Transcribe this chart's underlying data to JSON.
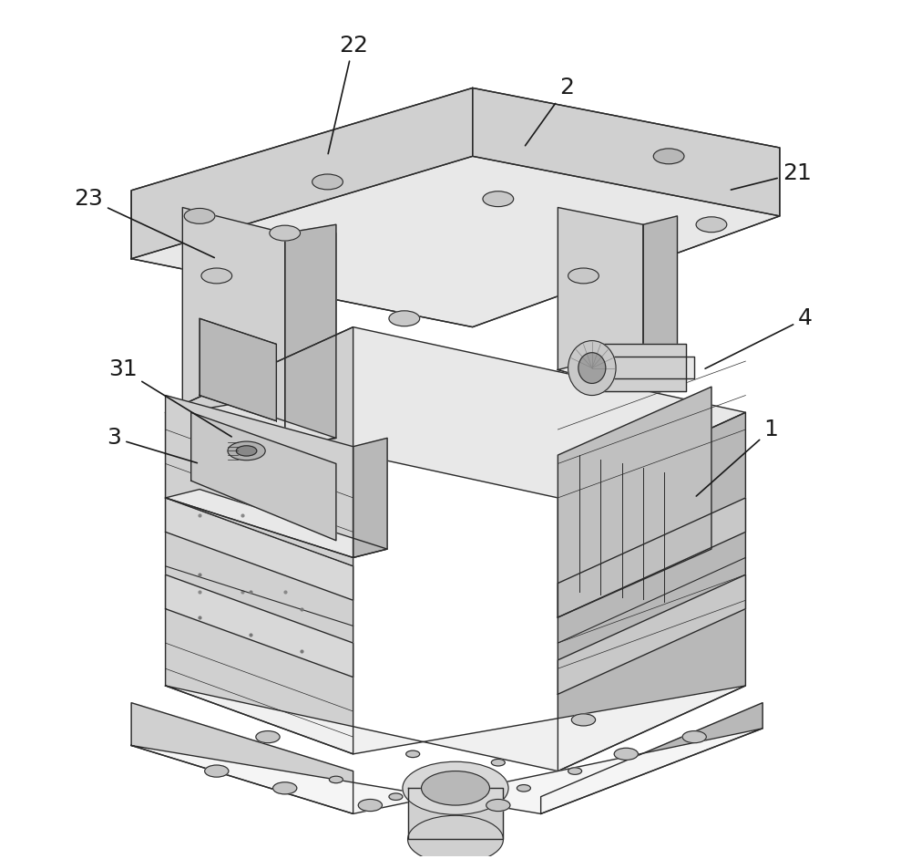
{
  "bg_color": "#ffffff",
  "line_color": "#2a2a2a",
  "fill_light": "#e8e8e8",
  "fill_mid": "#d0d0d0",
  "fill_dark": "#b8b8b8",
  "fill_darker": "#a0a0a0",
  "labels": {
    "1": [
      0.82,
      0.52,
      "1"
    ],
    "2": [
      0.62,
      0.88,
      "2"
    ],
    "21": [
      0.88,
      0.82,
      "21"
    ],
    "22": [
      0.38,
      0.93,
      "22"
    ],
    "23": [
      0.08,
      0.8,
      "23"
    ],
    "3": [
      0.12,
      0.5,
      "3"
    ],
    "31": [
      0.12,
      0.58,
      "31"
    ],
    "4": [
      0.9,
      0.65,
      "4"
    ]
  },
  "label_fontsize": 18
}
